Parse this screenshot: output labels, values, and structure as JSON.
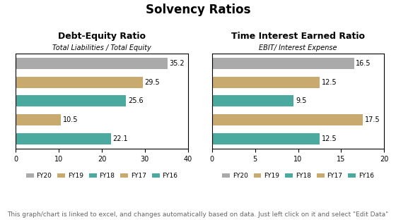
{
  "title": "Solvency Ratios",
  "annotations": [
    "This graph/chart is linked to excel, and changes automatically based on data. Just left click on it and select \"Edit Data\""
  ],
  "chart_data": [
    {
      "type": "bar",
      "orientation": "horizontal",
      "title": "Debt-Equity Ratio",
      "subtitle": "Total Liabilities / Total Equity",
      "categories": [
        "FY20",
        "FY19",
        "FY18",
        "FY17",
        "FY16"
      ],
      "values": [
        35.2,
        29.5,
        25.6,
        10.5,
        22.1
      ],
      "colors": [
        "#aaaaaa",
        "#c8a96e",
        "#4baaa0",
        "#c8a96e",
        "#4baaa0"
      ],
      "xlim": [
        0,
        40
      ],
      "xticks": [
        0,
        10,
        20,
        30,
        40
      ],
      "data_labels": true,
      "tick_labels": "x",
      "legend": "lower center"
    },
    {
      "type": "bar",
      "orientation": "horizontal",
      "title": "Time Interest Earned Ratio",
      "subtitle": "EBIT/ Interest Expense",
      "categories": [
        "FY20",
        "FY19",
        "FY18",
        "FY17",
        "FY16"
      ],
      "values": [
        16.5,
        12.5,
        9.5,
        17.5,
        12.5
      ],
      "colors": [
        "#aaaaaa",
        "#c8a96e",
        "#4baaa0",
        "#c8a96e",
        "#4baaa0"
      ],
      "xlim": [
        0,
        20
      ],
      "xticks": [
        0,
        5,
        10,
        15,
        20
      ],
      "data_labels": true,
      "tick_labels": "x",
      "legend": "lower center"
    }
  ]
}
